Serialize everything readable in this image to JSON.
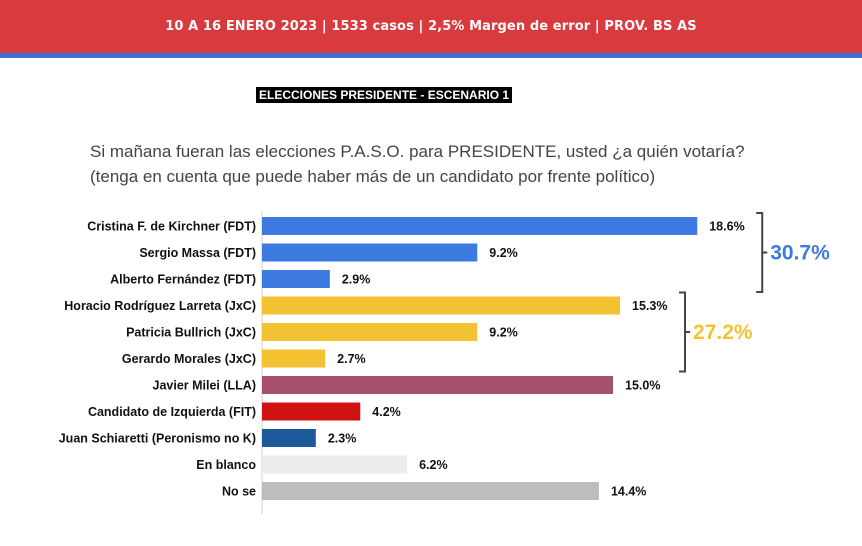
{
  "header": {
    "banner": "10 A 16 ENERO 2023 | 1533 casos  |  2,5% Margen de error  | PROV. BS AS",
    "scenario": "ELECCIONES PRESIDENTE - ESCENARIO 1",
    "question_line1": "Si mañana fueran las elecciones P.A.S.O. para PRESIDENTE, usted ¿a quién votaría?",
    "question_line2": "(tenga en cuenta que puede haber más de un candidato por frente político)"
  },
  "colors": {
    "banner": "#d93a3d",
    "banner_border": "#3b6fd1",
    "fdt": "#3d7be0",
    "jxc": "#f2c232",
    "lla": "#a6506f",
    "fit": "#d11212",
    "schiaretti": "#1d5a9a",
    "blanco": "#ececec",
    "nose": "#bdbdbd",
    "bracket": "#444444"
  },
  "chart_data": {
    "type": "bar",
    "orientation": "horizontal",
    "categories": [
      "Cristina F. de Kirchner (FDT)",
      "Sergio Massa (FDT)",
      "Alberto Fernández (FDT)",
      "Horacio Rodríguez Larreta (JxC)",
      "Patricia Bullrich (JxC)",
      "Gerardo Morales (JxC)",
      "Javier Milei (LLA)",
      "Candidato de Izquierda (FIT)",
      "Juan Schiaretti (Peronismo no K)",
      "En blanco",
      "No se"
    ],
    "values": [
      18.6,
      9.2,
      2.9,
      15.3,
      9.2,
      2.7,
      15.0,
      4.2,
      2.3,
      6.2,
      14.4
    ],
    "value_labels": [
      "18.6%",
      "9.2%",
      "2.9%",
      "15.3%",
      "9.2%",
      "2.7%",
      "15.0%",
      "4.2%",
      "2.3%",
      "6.2%",
      "14.4%"
    ],
    "bar_colors": [
      "#3d7be0",
      "#3d7be0",
      "#3d7be0",
      "#f2c232",
      "#f2c232",
      "#f2c232",
      "#a6506f",
      "#d11212",
      "#1d5a9a",
      "#ececec",
      "#bdbdbd"
    ],
    "xlim": [
      0,
      20
    ],
    "grid": false,
    "group_totals": [
      {
        "label": "30.7%",
        "first": 0,
        "last": 2,
        "color": "#3d7be0"
      },
      {
        "label": "27.2%",
        "first": 3,
        "last": 5,
        "color": "#f2c232"
      }
    ]
  }
}
